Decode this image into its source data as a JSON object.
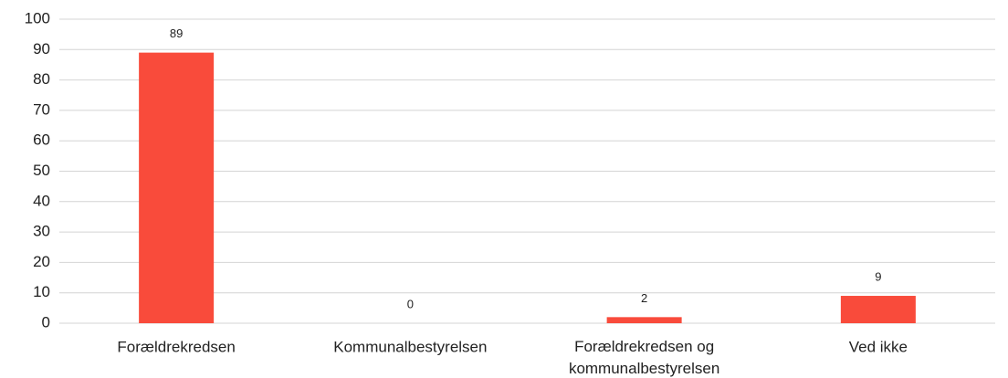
{
  "chart_data": {
    "type": "bar",
    "categories": [
      "Forældrekredsen",
      "Kommunalbestyrelsen",
      "Forældrekredsen og kommunalbestyrelsen",
      "Ved ikke"
    ],
    "values": [
      89,
      0,
      2,
      9
    ],
    "color": "#f94b3b",
    "ylim": [
      0,
      100
    ],
    "yticks": [
      0,
      10,
      20,
      30,
      40,
      50,
      60,
      70,
      80,
      90,
      100
    ],
    "grid": true,
    "data_labels": true
  }
}
